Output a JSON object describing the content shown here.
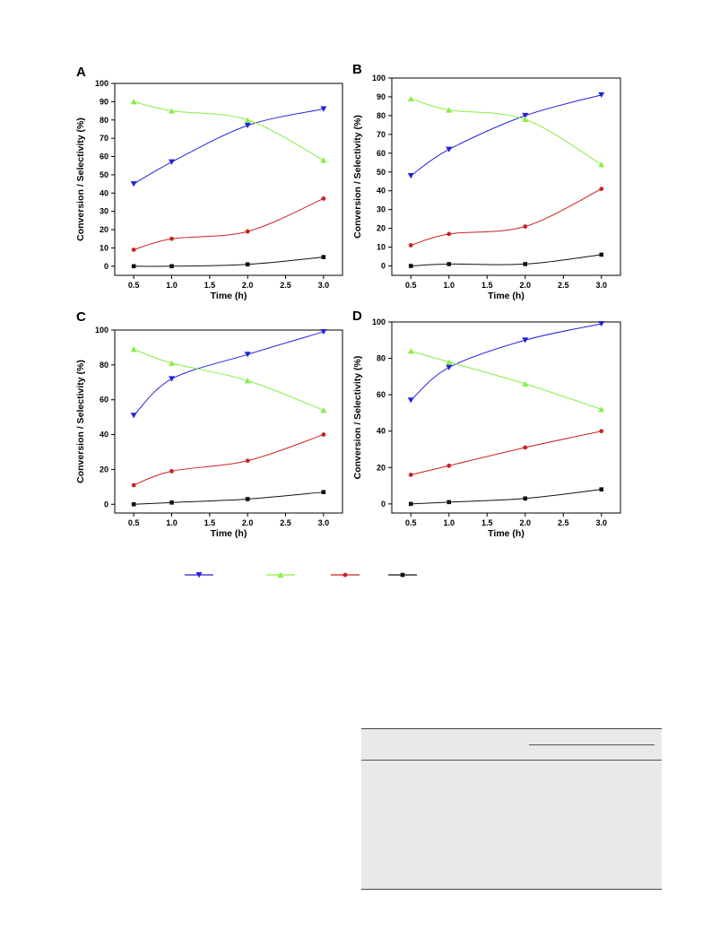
{
  "chart_data": [
    {
      "type": "line",
      "panel_label": "A",
      "xlabel": "Time (h)",
      "ylabel": "Conversion / Selectivity (%)",
      "xlim": [
        0.25,
        3.25
      ],
      "ylim": [
        -5,
        100
      ],
      "xticks": [
        "0.5",
        "1.0",
        "1.5",
        "2.0",
        "2.5",
        "3.0"
      ],
      "yticks": [
        "0",
        "10",
        "20",
        "30",
        "40",
        "50",
        "60",
        "70",
        "80",
        "90",
        "100"
      ],
      "x": [
        0.5,
        1.0,
        2.0,
        3.0
      ],
      "series": [
        {
          "color": "#2222dd",
          "marker": "triangle-down",
          "values": [
            45,
            57,
            77,
            86
          ]
        },
        {
          "color": "#88ee44",
          "marker": "triangle-up",
          "values": [
            90,
            85,
            80,
            58
          ]
        },
        {
          "color": "#cc2222",
          "marker": "circle",
          "values": [
            9,
            15,
            19,
            37
          ]
        },
        {
          "color": "#111111",
          "marker": "square",
          "values": [
            0,
            0,
            1,
            5
          ]
        }
      ]
    },
    {
      "type": "line",
      "panel_label": "B",
      "xlabel": "Time (h)",
      "ylabel": "Conversion / Selectivity (%)",
      "xlim": [
        0.25,
        3.25
      ],
      "ylim": [
        -5,
        100
      ],
      "xticks": [
        "0.5",
        "1.0",
        "1.5",
        "2.0",
        "2.5",
        "3.0"
      ],
      "yticks": [
        "0",
        "10",
        "20",
        "30",
        "40",
        "50",
        "60",
        "70",
        "80",
        "90",
        "100"
      ],
      "x": [
        0.5,
        1.0,
        2.0,
        3.0
      ],
      "series": [
        {
          "color": "#2222dd",
          "marker": "triangle-down",
          "values": [
            48,
            62,
            80,
            91
          ]
        },
        {
          "color": "#88ee44",
          "marker": "triangle-up",
          "values": [
            89,
            83,
            78,
            54
          ]
        },
        {
          "color": "#cc2222",
          "marker": "circle",
          "values": [
            11,
            17,
            21,
            41
          ]
        },
        {
          "color": "#111111",
          "marker": "square",
          "values": [
            0,
            1,
            1,
            6
          ]
        }
      ]
    },
    {
      "type": "line",
      "panel_label": "C",
      "xlabel": "Time (h)",
      "ylabel": "Conversion / Selectivity (%)",
      "xlim": [
        0.25,
        3.25
      ],
      "ylim": [
        -5,
        100
      ],
      "xticks": [
        "0.5",
        "1.0",
        "1.5",
        "2.0",
        "2.5",
        "3.0"
      ],
      "yticks": [
        "0",
        "20",
        "40",
        "60",
        "80",
        "100"
      ],
      "x": [
        0.5,
        1.0,
        2.0,
        3.0
      ],
      "series": [
        {
          "color": "#2222dd",
          "marker": "triangle-down",
          "values": [
            51,
            72,
            86,
            99
          ]
        },
        {
          "color": "#88ee44",
          "marker": "triangle-up",
          "values": [
            89,
            81,
            71,
            54
          ]
        },
        {
          "color": "#cc2222",
          "marker": "circle",
          "values": [
            11,
            19,
            25,
            40
          ]
        },
        {
          "color": "#111111",
          "marker": "square",
          "values": [
            0,
            1,
            3,
            7
          ]
        }
      ]
    },
    {
      "type": "line",
      "panel_label": "D",
      "xlabel": "Time (h)",
      "ylabel": "Conversion / Selectivity (%)",
      "xlim": [
        0.25,
        3.25
      ],
      "ylim": [
        -5,
        100
      ],
      "xticks": [
        "0.5",
        "1.0",
        "1.5",
        "2.0",
        "2.5",
        "3.0"
      ],
      "yticks": [
        "0",
        "20",
        "40",
        "60",
        "80",
        "100"
      ],
      "x": [
        0.5,
        1.0,
        2.0,
        3.0
      ],
      "series": [
        {
          "color": "#2222dd",
          "marker": "triangle-down",
          "values": [
            57,
            75,
            90,
            99
          ]
        },
        {
          "color": "#88ee44",
          "marker": "triangle-up",
          "values": [
            84,
            78,
            66,
            52
          ]
        },
        {
          "color": "#cc2222",
          "marker": "circle",
          "values": [
            16,
            21,
            31,
            40
          ]
        },
        {
          "color": "#111111",
          "marker": "square",
          "values": [
            0,
            1,
            3,
            8
          ]
        }
      ]
    }
  ],
  "legend": {
    "placement": "bottom-center",
    "entries": [
      {
        "color": "#2222dd",
        "marker": "triangle-down"
      },
      {
        "color": "#88ee44",
        "marker": "triangle-up"
      },
      {
        "color": "#cc2222",
        "marker": "circle"
      },
      {
        "color": "#111111",
        "marker": "square"
      }
    ]
  }
}
